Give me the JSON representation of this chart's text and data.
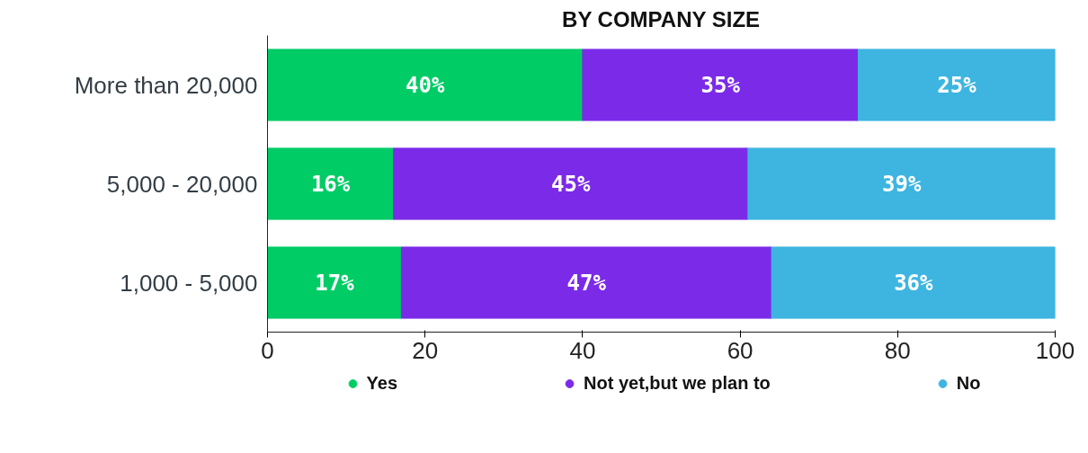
{
  "chart_data": {
    "type": "bar",
    "orientation": "horizontal",
    "stacked": true,
    "title": "BY COMPANY SIZE",
    "categories": [
      "More than 20,000",
      "5,000 - 20,000",
      "1,000 - 5,000"
    ],
    "series": [
      {
        "name": "Yes",
        "color": "#00cc66",
        "values": [
          40,
          16,
          17
        ],
        "value_labels": [
          "40%",
          "16%",
          "17%"
        ]
      },
      {
        "name": "Not yet,but we plan to",
        "color": "#7b2be8",
        "values": [
          35,
          45,
          47
        ],
        "value_labels": [
          "35%",
          "45%",
          "47%"
        ]
      },
      {
        "name": "No",
        "color": "#3db5e0",
        "values": [
          25,
          39,
          36
        ],
        "value_labels": [
          "25%",
          "39%",
          "36%"
        ]
      }
    ],
    "xlim": [
      0,
      100
    ],
    "xticks": [
      0,
      20,
      40,
      60,
      80,
      100
    ],
    "grid": false,
    "legend": "bottom",
    "marker": "circle"
  }
}
